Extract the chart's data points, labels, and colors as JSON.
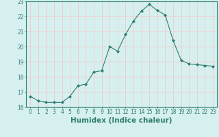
{
  "title": "",
  "xlabel": "Humidex (Indice chaleur)",
  "ylabel": "",
  "x": [
    0,
    1,
    2,
    3,
    4,
    5,
    6,
    7,
    8,
    9,
    10,
    11,
    12,
    13,
    14,
    15,
    16,
    17,
    18,
    19,
    20,
    21,
    22,
    23
  ],
  "y": [
    16.7,
    16.4,
    16.3,
    16.3,
    16.3,
    16.7,
    17.4,
    17.5,
    18.3,
    18.4,
    20.0,
    19.7,
    20.8,
    21.7,
    22.35,
    22.8,
    22.4,
    22.1,
    20.4,
    19.1,
    18.85,
    18.8,
    18.75,
    18.7
  ],
  "line_color": "#2e7d6e",
  "marker": "D",
  "marker_size": 2.0,
  "bg_color": "#d6f0f0",
  "plot_bg": "#cce8e8",
  "grid_color": "#f5c8c8",
  "ylim": [
    16,
    23
  ],
  "xlim": [
    -0.5,
    23.5
  ],
  "yticks": [
    16,
    17,
    18,
    19,
    20,
    21,
    22,
    23
  ],
  "xticks": [
    0,
    1,
    2,
    3,
    4,
    5,
    6,
    7,
    8,
    9,
    10,
    11,
    12,
    13,
    14,
    15,
    16,
    17,
    18,
    19,
    20,
    21,
    22,
    23
  ],
  "tick_fontsize": 5.5,
  "xlabel_fontsize": 7.5,
  "text_color": "#2e7d6e",
  "spine_color": "#2e7d6e"
}
